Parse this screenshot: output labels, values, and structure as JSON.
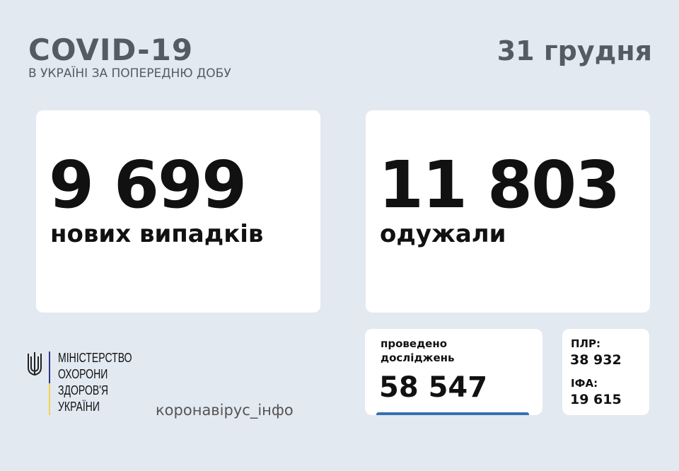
{
  "header": {
    "title": "COVID-19",
    "subtitle": "В УКРАЇНІ ЗА ПОПЕРЕДНЮ ДОБУ",
    "date": "31 грудня"
  },
  "cases": {
    "value": "9 699",
    "label": "нових випадків"
  },
  "recovered": {
    "value": "11 803",
    "label": "одужали"
  },
  "tests": {
    "label_line1": "проведено",
    "label_line2": "досліджень",
    "value": "58 547"
  },
  "pcr": {
    "label": "ПЛР:",
    "value": "38 932"
  },
  "ifa": {
    "label": "ІФА:",
    "value": "19 615"
  },
  "footer": {
    "ministry_lines": [
      "МІНІСТЕРСТВО",
      "ОХОРОНИ",
      "ЗДОРОВ'Я",
      "УКРАЇНИ"
    ],
    "site": "коронавірус_інфо"
  },
  "colors": {
    "background": "#e3e9f1",
    "accent_blue": "#3a6fb0",
    "flag_blue": "#2b3a8c",
    "flag_yellow": "#f2d24b"
  }
}
